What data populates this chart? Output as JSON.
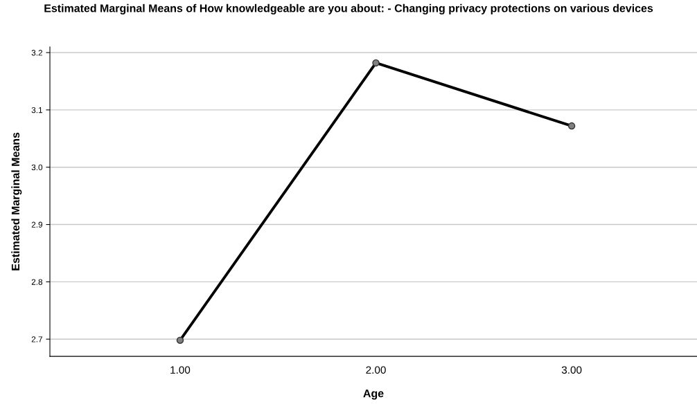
{
  "chart_data": {
    "type": "line",
    "title": "Estimated Marginal Means of How knowledgeable are you about: - Changing privacy protections on various devices",
    "xlabel": "Age",
    "ylabel": "Estimated Marginal Means",
    "categories": [
      "1.00",
      "2.00",
      "3.00"
    ],
    "series": [
      {
        "color": "#000000",
        "values": [
          2.698,
          3.182,
          3.072
        ]
      }
    ],
    "ylim": [
      2.67,
      3.21
    ],
    "yticks": [
      {
        "value": 2.7,
        "label": "2.7"
      },
      {
        "value": 2.8,
        "label": "2.8"
      },
      {
        "value": 2.9,
        "label": "2.9"
      },
      {
        "value": 3.0,
        "label": "3.0"
      },
      {
        "value": 3.1,
        "label": "3.1"
      },
      {
        "value": 3.2,
        "label": "3.2"
      }
    ],
    "grid": "y",
    "marker": "circle",
    "line_style": "solid",
    "legend": false
  }
}
